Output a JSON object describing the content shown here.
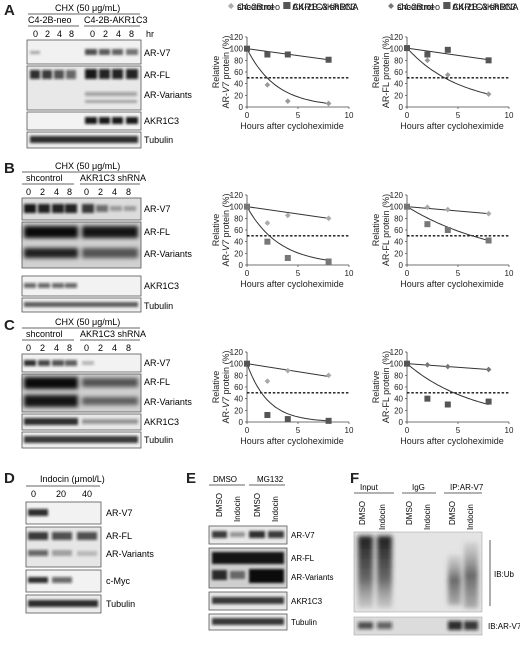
{
  "panels": {
    "A": {
      "letter": "A",
      "treatment": "CHX (50 μg/mL)",
      "groups": [
        "C4-2B-neo",
        "C4-2B-AKR1C3"
      ],
      "timepoints": [
        "0",
        "2",
        "4",
        "8",
        "0",
        "2",
        "4",
        "8"
      ],
      "time_unit": "hr",
      "bands": [
        "AR-V7",
        "AR-FL",
        "AR-Variants",
        "AKR1C3",
        "Tubulin"
      ]
    },
    "B": {
      "letter": "B",
      "treatment": "CHX (50 μg/mL)",
      "groups": [
        "shcontrol",
        "AKR1C3 shRNA"
      ],
      "timepoints": [
        "0",
        "2",
        "4",
        "8",
        "0",
        "2",
        "4",
        "8"
      ],
      "bands": [
        "AR-V7",
        "AR-FL",
        "AR-Variants",
        "AKR1C3",
        "Tubulin"
      ]
    },
    "C": {
      "letter": "C",
      "treatment": "CHX (50 μg/mL)",
      "groups": [
        "shcontrol",
        "AKR1C3 shRNA"
      ],
      "timepoints": [
        "0",
        "2",
        "4",
        "8",
        "0",
        "2",
        "4",
        "8"
      ],
      "bands": [
        "AR-V7",
        "AR-FL",
        "AR-Variants",
        "AKR1C3",
        "Tubulin"
      ]
    },
    "D": {
      "letter": "D",
      "treatment": "Indocin (μmol/L)",
      "doses": [
        "0",
        "20",
        "40"
      ],
      "bands": [
        "AR-V7",
        "AR-FL",
        "AR-Variants",
        "c-Myc",
        "Tubulin"
      ]
    },
    "E": {
      "letter": "E",
      "groups": [
        "DMSO",
        "MG132"
      ],
      "lanes": [
        "DMSO",
        "Indocin",
        "DMSO",
        "Indocin"
      ],
      "bands": [
        "AR-V7",
        "AR-FL",
        "AR-Variants",
        "AKR1C3",
        "Tubulin"
      ]
    },
    "F": {
      "letter": "F",
      "groups": [
        "Input",
        "IgG",
        "IP:AR-V7"
      ],
      "lanes": [
        "DMSO",
        "Indocin",
        "DMSO",
        "Indocin",
        "DMSO",
        "Indocin"
      ],
      "bands": [
        "IB:Ub",
        "IB:AR-V7"
      ]
    }
  },
  "chart_data": [
    {
      "id": "A-left",
      "type": "scatter",
      "legend": [
        "C4-2B neo",
        "C4-2B-AKR1C3"
      ],
      "xlabel": "Hours after cycloheximide",
      "ylabel": "Relative AR-V7 protein (%)",
      "ylabel_plain": "Relative AR-",
      "ylabel_italic": "V7",
      "ylabel_tail": " protein (%)",
      "xlim": [
        0,
        10
      ],
      "ylim": [
        0,
        120
      ],
      "xticks": [
        "0",
        "5",
        "10"
      ],
      "yticks": [
        "0",
        "20",
        "40",
        "60",
        "80",
        "100",
        "120"
      ],
      "threshold": 50,
      "series": [
        {
          "name": "C4-2B neo",
          "marker": "diamond",
          "color": "#9a9a9a",
          "x": [
            0,
            2,
            4,
            8
          ],
          "y": [
            100,
            38,
            10,
            6
          ],
          "fit": "exp",
          "fit_y_end": 6
        },
        {
          "name": "C4-2B-AKR1C3",
          "marker": "square",
          "color": "#555555",
          "x": [
            0,
            2,
            4,
            8
          ],
          "y": [
            100,
            90,
            90,
            81
          ],
          "fit": "line",
          "fit_y_end": 81
        }
      ]
    },
    {
      "id": "A-right",
      "type": "scatter",
      "legend": [
        "C4-2B neo",
        "C4-2B-AKR1C3"
      ],
      "xlabel": "Hours after cycloheximide",
      "ylabel": "Relative AR-FL protein (%)",
      "xlim": [
        0,
        10
      ],
      "ylim": [
        0,
        120
      ],
      "xticks": [
        "0",
        "5",
        "10"
      ],
      "yticks": [
        "0",
        "20",
        "40",
        "60",
        "80",
        "100",
        "120"
      ],
      "threshold": 50,
      "series": [
        {
          "name": "C4-2B neo",
          "marker": "diamond",
          "color": "#9a9a9a",
          "x": [
            0,
            2,
            4,
            8
          ],
          "y": [
            101,
            80,
            55,
            22
          ],
          "fit": "exp",
          "fit_y_end": 22
        },
        {
          "name": "C4-2B-AKR1C3",
          "marker": "square",
          "color": "#555555",
          "x": [
            0,
            2,
            4,
            8
          ],
          "y": [
            101,
            90,
            98,
            80
          ],
          "fit": "line",
          "fit_y_end": 81
        }
      ]
    },
    {
      "id": "B-left",
      "type": "scatter",
      "legend": [
        "shcontrol",
        "AKR1C3 shRNA"
      ],
      "xlabel": "Hours after cycloheximide",
      "ylabel": "Relative AR-V7 protein (%)",
      "ylabel_plain": "Relative AR-",
      "ylabel_italic": "V7",
      "ylabel_tail": " protein (%)",
      "xlim": [
        0,
        10
      ],
      "ylim": [
        0,
        120
      ],
      "xticks": [
        "0",
        "5",
        "10"
      ],
      "yticks": [
        "0",
        "20",
        "40",
        "60",
        "80",
        "100",
        "120"
      ],
      "threshold": 50,
      "series": [
        {
          "name": "shcontrol",
          "marker": "diamond",
          "color": "#aaaaaa",
          "x": [
            0,
            2,
            4,
            8
          ],
          "y": [
            100,
            72,
            85,
            80
          ],
          "fit": "line",
          "fit_y_end": 80
        },
        {
          "name": "AKR1C3 shRNA",
          "marker": "square",
          "color": "#777777",
          "x": [
            0,
            2,
            4,
            8
          ],
          "y": [
            100,
            40,
            12,
            6
          ],
          "fit": "exp",
          "fit_y_end": 8
        }
      ]
    },
    {
      "id": "B-right",
      "type": "scatter",
      "legend": [
        "shcontrol",
        "AKR1C3 shRNA"
      ],
      "xlabel": "Hours after cycloheximide",
      "ylabel": "Relative AR-FL protein (%)",
      "xlim": [
        0,
        10
      ],
      "ylim": [
        0,
        120
      ],
      "xticks": [
        "0",
        "5",
        "10"
      ],
      "yticks": [
        "0",
        "20",
        "40",
        "60",
        "80",
        "100",
        "120"
      ],
      "threshold": 50,
      "series": [
        {
          "name": "shcontrol",
          "marker": "diamond",
          "color": "#aaaaaa",
          "x": [
            0,
            2,
            4,
            8
          ],
          "y": [
            100,
            99,
            95,
            88
          ],
          "fit": "line",
          "fit_y_end": 88
        },
        {
          "name": "AKR1C3 shRNA",
          "marker": "square",
          "color": "#777777",
          "x": [
            0,
            2,
            4,
            8
          ],
          "y": [
            100,
            70,
            60,
            42
          ],
          "fit": "exp",
          "fit_y_end": 42
        }
      ]
    },
    {
      "id": "C-left",
      "type": "scatter",
      "legend": [
        "shcontrol",
        "AKR1C3 shRNA"
      ],
      "xlabel": "Hours after cycloheximide",
      "ylabel": "Relative AR-V7 protein (%)",
      "ylabel_plain": "Relative AR-",
      "ylabel_italic": "V7",
      "ylabel_tail": " protein (%)",
      "xlim": [
        0,
        10
      ],
      "ylim": [
        0,
        120
      ],
      "xticks": [
        "0",
        "5",
        "10"
      ],
      "yticks": [
        "0",
        "20",
        "40",
        "60",
        "80",
        "100",
        "120"
      ],
      "threshold": 50,
      "series": [
        {
          "name": "shcontrol",
          "marker": "diamond",
          "color": "#aaaaaa",
          "x": [
            0,
            2,
            4,
            8
          ],
          "y": [
            100,
            70,
            88,
            80
          ],
          "fit": "line",
          "fit_y_end": 78
        },
        {
          "name": "AKR1C3 shRNA",
          "marker": "square",
          "color": "#555555",
          "x": [
            0,
            2,
            4,
            8
          ],
          "y": [
            100,
            12,
            5,
            2
          ],
          "fit": "exp",
          "fit_y_end": 2
        }
      ]
    },
    {
      "id": "C-right",
      "type": "scatter",
      "legend": [
        "shcontrol",
        "AKR1C3 shRNA"
      ],
      "xlabel": "Hours after cycloheximide",
      "ylabel": "Relative AR-FL protein (%)",
      "xlim": [
        0,
        10
      ],
      "ylim": [
        0,
        120
      ],
      "xticks": [
        "0",
        "5",
        "10"
      ],
      "yticks": [
        "0",
        "20",
        "40",
        "60",
        "80",
        "100",
        "120"
      ],
      "threshold": 50,
      "series": [
        {
          "name": "shcontrol",
          "marker": "diamond",
          "color": "#777777",
          "x": [
            0,
            2,
            4,
            8
          ],
          "y": [
            100,
            98,
            95,
            90
          ],
          "fit": "line",
          "fit_y_end": 90
        },
        {
          "name": "AKR1C3 shRNA",
          "marker": "square",
          "color": "#555555",
          "x": [
            0,
            2,
            4,
            8
          ],
          "y": [
            100,
            40,
            30,
            35
          ],
          "fit": "exp",
          "fit_y_end": 30
        }
      ]
    }
  ]
}
